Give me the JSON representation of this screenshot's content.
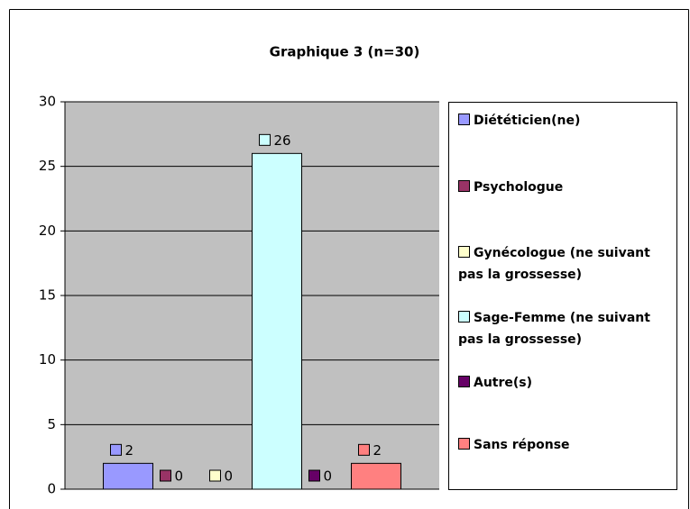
{
  "chart_data": {
    "type": "bar",
    "title": "Graphique 3 (n=30)",
    "series": [
      {
        "name": "Diététicien(ne)",
        "color": "#9999ff",
        "values": [
          2
        ]
      },
      {
        "name": "Psychologue",
        "color": "#993366",
        "values": [
          0
        ]
      },
      {
        "name": "Gynécologue (ne suivant pas la grossesse)",
        "color": "#ffffcc",
        "values": [
          0
        ]
      },
      {
        "name": "Sage-Femme (ne suivant pas la grossesse)",
        "color": "#ccffff",
        "values": [
          26
        ]
      },
      {
        "name": "Autre(s)",
        "color": "#660066",
        "values": [
          0
        ]
      },
      {
        "name": "Sans réponse",
        "color": "#ff8080",
        "values": [
          2
        ]
      }
    ],
    "ylim": [
      0,
      30
    ],
    "yticks": [
      0,
      5,
      10,
      15,
      20,
      25,
      30
    ],
    "grid": true,
    "legend": "right"
  }
}
